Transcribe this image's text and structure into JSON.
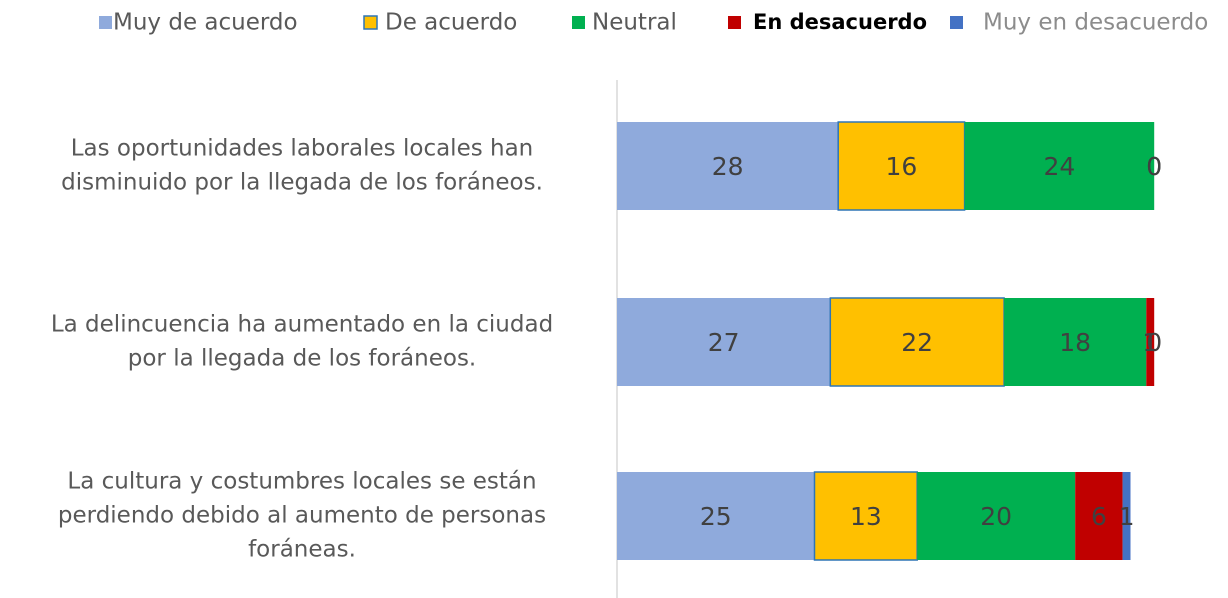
{
  "chart_data": {
    "type": "stacked-bar-horizontal",
    "categories": [
      [
        "Las oportunidades laborales locales han",
        "disminuido por la llegada de los foráneos."
      ],
      [
        "La delincuencia ha aumentado en la ciudad",
        "por la llegada de los foráneos."
      ],
      [
        "La cultura y costumbres locales se están",
        "perdiendo debido al aumento de personas",
        "foráneas."
      ]
    ],
    "series": [
      {
        "name": "Muy de acuerdo",
        "color": "#8faadc",
        "values": [
          28,
          27,
          25
        ]
      },
      {
        "name": "De acuerdo",
        "color": "#ffc000",
        "values": [
          16,
          22,
          13
        ]
      },
      {
        "name": "Neutral",
        "color": "#00b050",
        "values": [
          24,
          18,
          20
        ]
      },
      {
        "name": "En desacuerdo",
        "color": "#c00000",
        "values": [
          0,
          1,
          6
        ]
      },
      {
        "name": "Muy en desacuerdo",
        "color": "#4472c4",
        "values": [
          0,
          0,
          1
        ]
      }
    ],
    "xlim": [
      0,
      70
    ],
    "legend": "top"
  }
}
